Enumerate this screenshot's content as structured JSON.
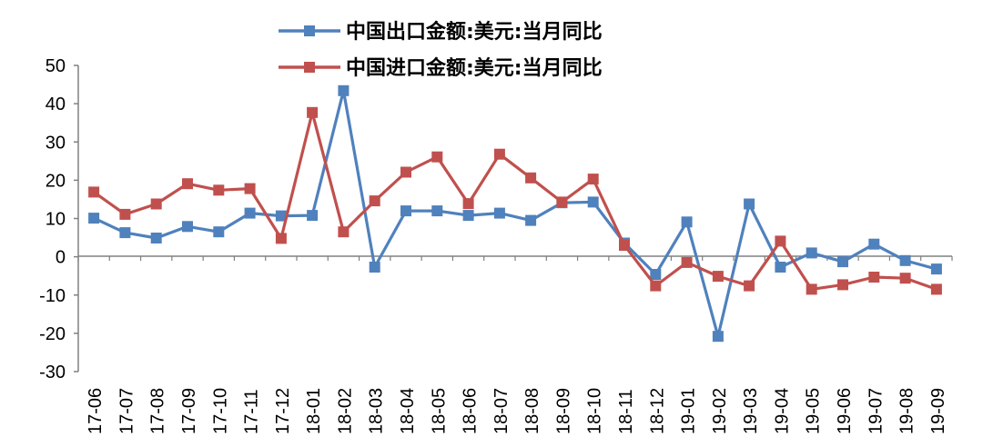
{
  "chart_data": {
    "type": "line",
    "categories": [
      "17-06",
      "17-07",
      "17-08",
      "17-09",
      "17-10",
      "17-11",
      "17-12",
      "18-01",
      "18-02",
      "18-03",
      "18-04",
      "18-05",
      "18-06",
      "18-07",
      "18-08",
      "18-09",
      "18-10",
      "18-11",
      "18-12",
      "19-01",
      "19-02",
      "19-03",
      "19-04",
      "19-05",
      "19-06",
      "19-07",
      "19-08",
      "19-09"
    ],
    "series": [
      {
        "name": "中国出口金额:美元:当月同比",
        "color": "#4F81BD",
        "values": [
          10.1,
          6.3,
          4.9,
          7.9,
          6.5,
          11.4,
          10.7,
          10.8,
          43.4,
          -2.7,
          12.0,
          12.0,
          10.8,
          11.4,
          9.5,
          14.1,
          14.3,
          3.6,
          -4.6,
          9.1,
          -20.8,
          13.8,
          -2.7,
          1.0,
          -1.3,
          3.3,
          -1.0,
          -3.2
        ]
      },
      {
        "name": "中国进口金额:美元:当月同比",
        "color": "#C0504D",
        "values": [
          16.9,
          11.1,
          13.8,
          19.1,
          17.4,
          17.8,
          4.8,
          37.7,
          6.5,
          14.6,
          22.1,
          26.1,
          13.9,
          26.8,
          20.6,
          14.3,
          20.3,
          3.0,
          -7.6,
          -1.5,
          -5.1,
          -7.6,
          4.1,
          -8.5,
          -7.3,
          -5.3,
          -5.6,
          -8.5
        ]
      }
    ],
    "ylim": [
      -30,
      50
    ],
    "yticks": [
      "50",
      "40",
      "30",
      "20",
      "10",
      "0",
      "-10",
      "-20",
      "-30"
    ],
    "negative_tick_color": "#FF0000",
    "grid": false,
    "legend_position": "top"
  }
}
